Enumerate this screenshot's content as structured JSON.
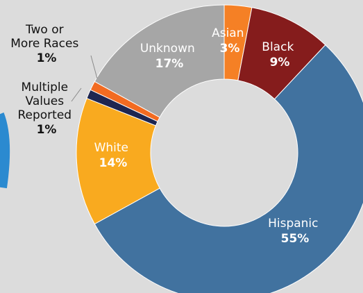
{
  "chart_data": {
    "type": "pie",
    "style": "donut",
    "categories": [
      "Asian",
      "Black",
      "Hispanic",
      "White",
      "Multiple Values Reported",
      "Two or More Races",
      "Unknown"
    ],
    "values": [
      3,
      9,
      55,
      14,
      1,
      1,
      17
    ],
    "value_labels": [
      "3%",
      "9%",
      "55%",
      "14%",
      "1%",
      "1%",
      "17%"
    ],
    "colors": [
      "#f58025",
      "#851c1c",
      "#41729f",
      "#f9aa1f",
      "#1e2651",
      "#f26b21",
      "#a6a6a6"
    ],
    "legend": "none",
    "start_angle_deg": 0,
    "direction": "clockwise",
    "slice_label_lines": {
      "asian": [
        "Asian"
      ],
      "black": [
        "Black"
      ],
      "hispanic": [
        "Hispanic"
      ],
      "white": [
        "White"
      ],
      "multiple": [
        "Multiple",
        "Values",
        "Reported"
      ],
      "two_or_more": [
        "Two or",
        "More Races"
      ],
      "unknown": [
        "Unknown"
      ]
    }
  },
  "decor": {
    "left_arc_color": "#2b8ad0",
    "background": "#dcdcdc"
  }
}
